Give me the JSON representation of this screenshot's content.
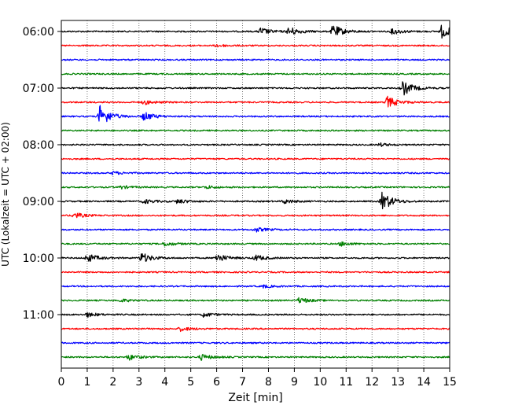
{
  "chart_data": {
    "type": "line",
    "title": "",
    "xlabel": "Zeit  [min]",
    "ylabel": "UTC (Lokalzeit = UTC + 02:00)",
    "xlim": [
      0,
      15
    ],
    "x_ticks": [
      0,
      1,
      2,
      3,
      4,
      5,
      6,
      7,
      8,
      9,
      10,
      11,
      12,
      13,
      14,
      15
    ],
    "x_tick_labels": [
      "0",
      "1",
      "2",
      "3",
      "4",
      "5",
      "6",
      "7",
      "8",
      "9",
      "10",
      "11",
      "12",
      "13",
      "14",
      "15"
    ],
    "y_tick_labels": [
      "06:00",
      "07:00",
      "08:00",
      "09:00",
      "10:00",
      "11:00"
    ],
    "rows_per_hour": 4,
    "row_interval_min": 15,
    "row_count": 24,
    "trace_colors": [
      "#000000",
      "#ff0000",
      "#0000ff",
      "#008000"
    ],
    "vertical_grid": true,
    "grid_style": "dotted",
    "legend": "none",
    "events": [
      {
        "row": 0,
        "x": 7.7,
        "amp": 0.5
      },
      {
        "row": 0,
        "x": 8.8,
        "amp": 0.6
      },
      {
        "row": 0,
        "x": 10.5,
        "amp": 0.9
      },
      {
        "row": 0,
        "x": 12.8,
        "amp": 0.4
      },
      {
        "row": 0,
        "x": 14.7,
        "amp": 0.9
      },
      {
        "row": 1,
        "x": 6.0,
        "amp": 0.2
      },
      {
        "row": 4,
        "x": 13.2,
        "amp": 1.0
      },
      {
        "row": 5,
        "x": 3.2,
        "amp": 0.3
      },
      {
        "row": 5,
        "x": 12.6,
        "amp": 0.8
      },
      {
        "row": 6,
        "x": 1.5,
        "amp": 1.5
      },
      {
        "row": 6,
        "x": 3.2,
        "amp": 0.6
      },
      {
        "row": 8,
        "x": 12.3,
        "amp": 0.2
      },
      {
        "row": 10,
        "x": 2.0,
        "amp": 0.2
      },
      {
        "row": 11,
        "x": 2.3,
        "amp": 0.2
      },
      {
        "row": 11,
        "x": 5.6,
        "amp": 0.2
      },
      {
        "row": 12,
        "x": 3.2,
        "amp": 0.3
      },
      {
        "row": 12,
        "x": 4.5,
        "amp": 0.3
      },
      {
        "row": 12,
        "x": 8.6,
        "amp": 0.3
      },
      {
        "row": 12,
        "x": 12.4,
        "amp": 1.3
      },
      {
        "row": 13,
        "x": 0.5,
        "amp": 0.4
      },
      {
        "row": 14,
        "x": 7.5,
        "amp": 0.3
      },
      {
        "row": 15,
        "x": 4.0,
        "amp": 0.3
      },
      {
        "row": 15,
        "x": 10.8,
        "amp": 0.3
      },
      {
        "row": 16,
        "x": 1.0,
        "amp": 0.6
      },
      {
        "row": 16,
        "x": 3.1,
        "amp": 0.7
      },
      {
        "row": 16,
        "x": 6.0,
        "amp": 0.6
      },
      {
        "row": 16,
        "x": 7.5,
        "amp": 0.4
      },
      {
        "row": 18,
        "x": 7.8,
        "amp": 0.2
      },
      {
        "row": 19,
        "x": 9.2,
        "amp": 0.4
      },
      {
        "row": 19,
        "x": 2.3,
        "amp": 0.2
      },
      {
        "row": 20,
        "x": 1.0,
        "amp": 0.3
      },
      {
        "row": 20,
        "x": 5.5,
        "amp": 0.3
      },
      {
        "row": 21,
        "x": 4.6,
        "amp": 0.3
      },
      {
        "row": 23,
        "x": 2.6,
        "amp": 0.4
      },
      {
        "row": 23,
        "x": 5.4,
        "amp": 0.4
      }
    ]
  }
}
